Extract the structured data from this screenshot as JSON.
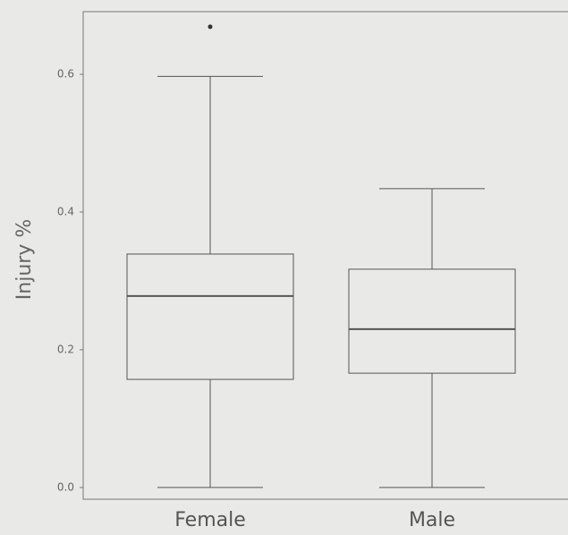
{
  "chart_data": {
    "type": "box",
    "y_label": "Injury %",
    "categories": [
      "Female",
      "Male"
    ],
    "boxes": [
      {
        "min": 0,
        "q1": 0.157,
        "median": 0.278,
        "q3": 0.339,
        "max": 0.597,
        "outliers": [
          0.669
        ]
      },
      {
        "min": 0,
        "q1": 0.166,
        "median": 0.23,
        "q3": 0.317,
        "max": 0.434,
        "outliers": []
      }
    ],
    "color": "#555555",
    "ylim": [
      -0.017,
      0.691
    ],
    "yticks": [
      {
        "value": 0,
        "label": "0.0"
      },
      0.2,
      0.4,
      0.6
    ],
    "grid": false
  }
}
